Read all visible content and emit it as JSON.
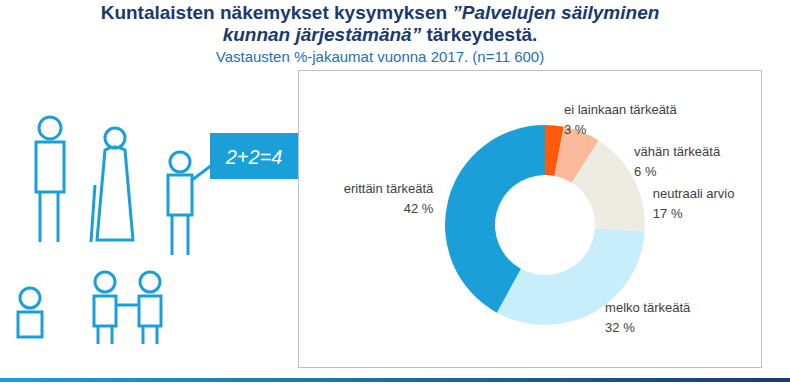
{
  "chart_data": {
    "type": "pie",
    "title": "Kuntalaisten näkemykset kysymyksen ”Palvelujen säilyminen kunnan järjestämänä” tärkeydestä.",
    "subtitle": "Vastausten %-jakaumat vuonna 2017. (n=11 600)",
    "annotations": [
      "2+2=4"
    ],
    "categories": [
      "ei lainkaan tärkeätä",
      "vähän tärkeätä",
      "neutraali arvio",
      "melko tärkeätä",
      "erittäin tärkeätä"
    ],
    "values": [
      3,
      6,
      17,
      32,
      42
    ],
    "value_labels": [
      "3 %",
      "6 %",
      "17 %",
      "32 %",
      "42 %"
    ],
    "colors": [
      "#ff5a0a",
      "#f9b99a",
      "#eeebe2",
      "#c8eefc",
      "#1a9fd8"
    ],
    "data_labels": true
  }
}
